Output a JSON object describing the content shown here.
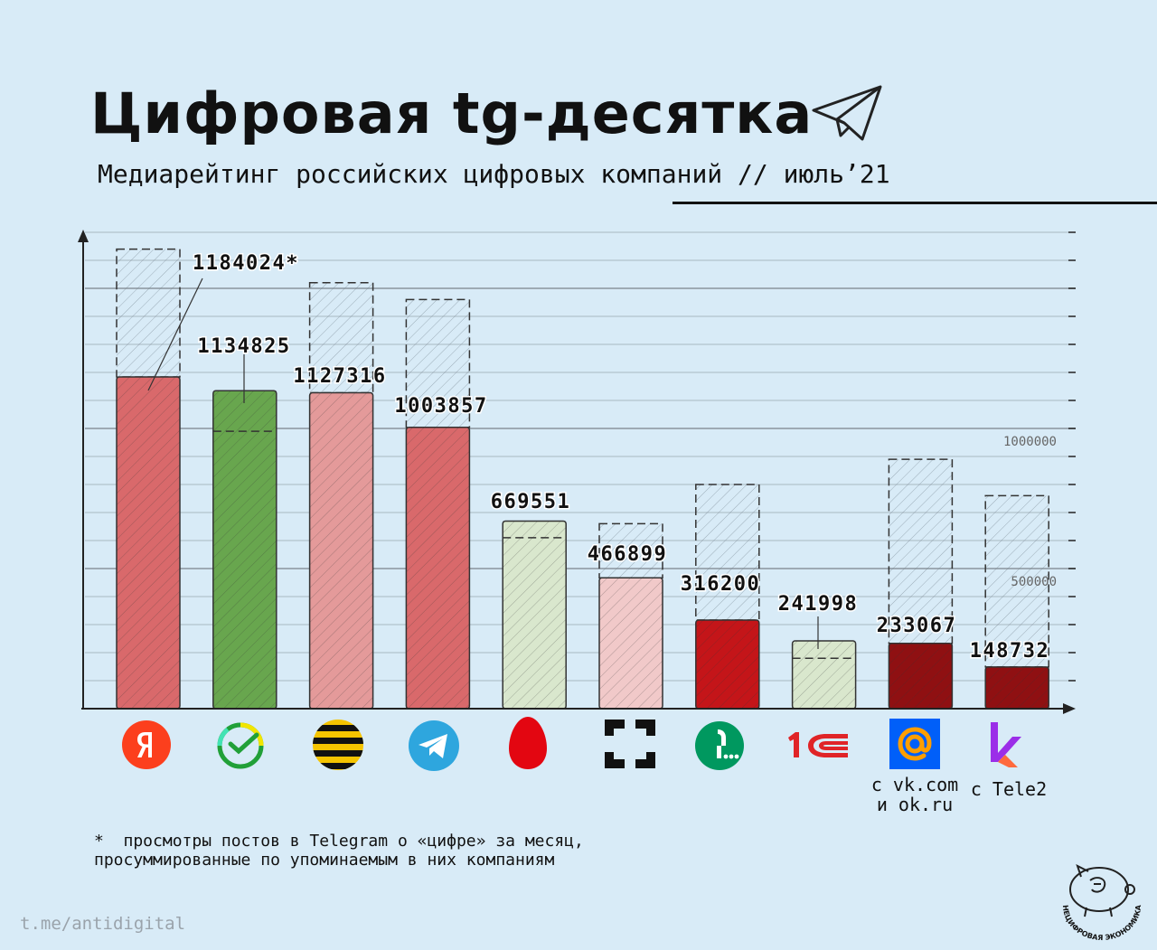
{
  "header": {
    "title": "Цифровая tg-десятка",
    "subtitle": "Медиарейтинг российских цифровых компаний // июль’21"
  },
  "chart_data": {
    "type": "bar",
    "ylim": [
      0,
      1700000
    ],
    "reference_lines": [
      {
        "value": 1000000,
        "label": "1000000"
      },
      {
        "value": 500000,
        "label": "500000"
      }
    ],
    "categories": [
      "Яндекс",
      "Сбер",
      "Билайн",
      "Telegram",
      "МТС",
      "Ростелеком",
      "МегаФон",
      "1С",
      "Mail.ru",
      "Kion"
    ],
    "series": [
      {
        "values": [
          1184024,
          1134825,
          1127316,
          1003857,
          669551,
          466899,
          316200,
          241998,
          233067,
          148732
        ]
      },
      {
        "values": [
          1640000,
          990000,
          1520000,
          1460000,
          610000,
          660000,
          800000,
          180000,
          890000,
          760000
        ]
      }
    ],
    "value_labels": [
      "1184024*",
      "1134825",
      "1127316",
      "1003857",
      "669551",
      "466899",
      "316200",
      "241998",
      "233067",
      "148732"
    ],
    "bar_colors": [
      "#d9696b",
      "#68a64e",
      "#e49a9a",
      "#d9696b",
      "#d9e7cd",
      "#f1c9c9",
      "#c41519",
      "#d9e7cd",
      "#8f1012",
      "#8f1012"
    ]
  },
  "logos": [
    {
      "icon": "yandex-icon",
      "caption": ""
    },
    {
      "icon": "sber-icon",
      "caption": ""
    },
    {
      "icon": "beeline-icon",
      "caption": ""
    },
    {
      "icon": "telegram-icon",
      "caption": ""
    },
    {
      "icon": "mts-icon",
      "caption": ""
    },
    {
      "icon": "rostelecom-icon",
      "caption": ""
    },
    {
      "icon": "megafon-icon",
      "caption": ""
    },
    {
      "icon": "1c-icon",
      "caption": ""
    },
    {
      "icon": "mailru-icon",
      "caption_line1": "с vk.com",
      "caption_line2": "и ok.ru"
    },
    {
      "icon": "kion-icon",
      "caption": "с Tele2"
    }
  ],
  "footnote": {
    "line1": "*  просмотры постов в Telegram о «цифре» за месяц,",
    "line2": "просуммированные по упоминаемым в них компаниям"
  },
  "source": "t.me/antidigital",
  "brand": "НЕЦИФРОВАЯ ЭКОНОМИКА"
}
